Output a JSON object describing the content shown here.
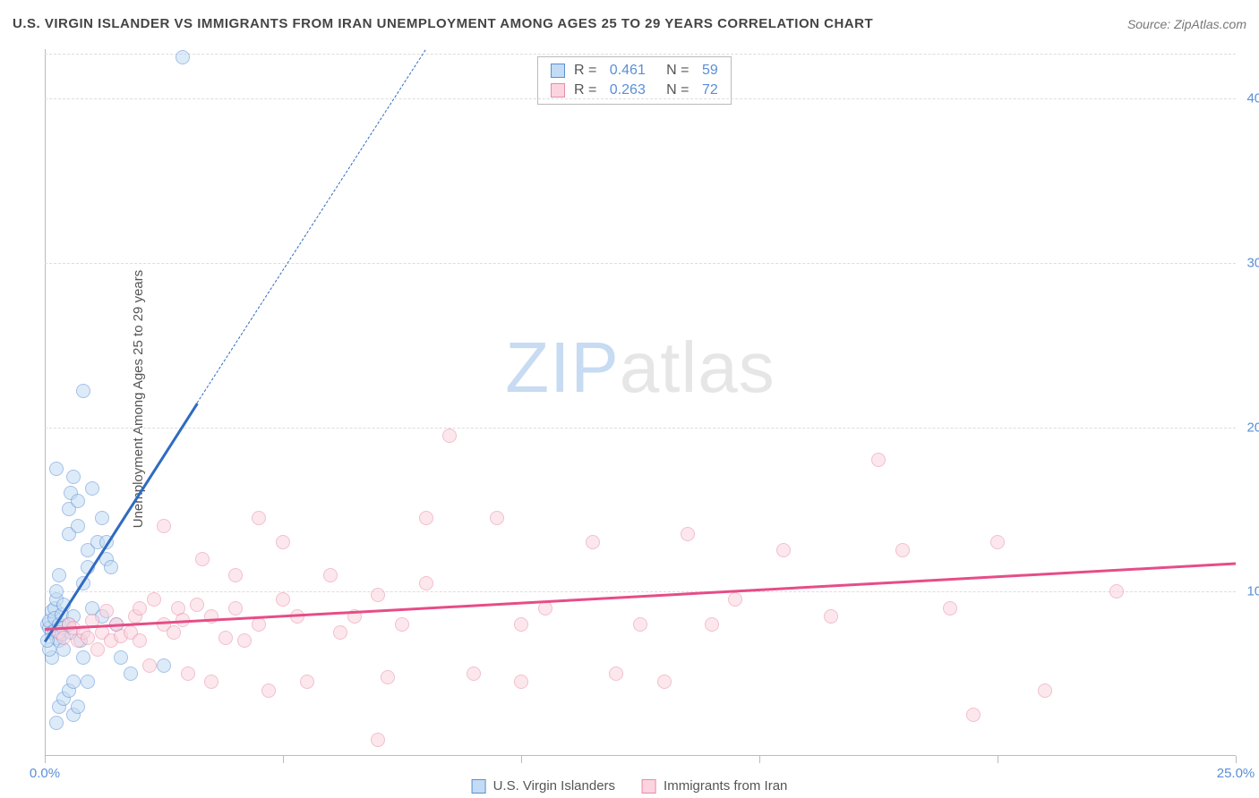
{
  "header": {
    "title": "U.S. VIRGIN ISLANDER VS IMMIGRANTS FROM IRAN UNEMPLOYMENT AMONG AGES 25 TO 29 YEARS CORRELATION CHART",
    "source": "Source: ZipAtlas.com"
  },
  "ylabel": "Unemployment Among Ages 25 to 29 years",
  "watermark": {
    "part1": "ZIP",
    "part2": "atlas",
    "color1": "#c7dbf2",
    "color2": "#e6e6e6"
  },
  "chart": {
    "type": "scatter",
    "xlim": [
      0,
      25
    ],
    "ylim": [
      0,
      43
    ],
    "background_color": "#ffffff",
    "grid_color": "#dddddd",
    "axis_color": "#bbbbbb",
    "x_ticks": [
      0,
      5,
      10,
      15,
      20,
      25
    ],
    "x_tick_labels": {
      "0": "0.0%",
      "25": "25.0%"
    },
    "x_tick_label_color": "#5a8fd6",
    "y_ticks": [
      10,
      20,
      30,
      40
    ],
    "y_tick_labels": {
      "10": "10.0%",
      "20": "20.0%",
      "30": "30.0%",
      "40": "40.0%"
    },
    "y_tick_label_color": "#5a8fd6",
    "series": [
      {
        "name": "U.S. Virgin Islanders",
        "stroke": "#5a8fd6",
        "fill": "#c3dbf4",
        "fill_opacity": 0.55,
        "marker_radius": 8,
        "r_value": "0.461",
        "n_value": "59",
        "trend": {
          "x1": 0,
          "y1": 7.0,
          "x2": 3.2,
          "y2": 21.5,
          "dash_x2": 8.0,
          "dash_y2": 43.0,
          "color": "#2f6bc0",
          "width": 2.5
        },
        "points": [
          [
            0.05,
            8.0
          ],
          [
            0.1,
            7.8
          ],
          [
            0.1,
            8.2
          ],
          [
            0.15,
            7.5
          ],
          [
            0.15,
            8.8
          ],
          [
            0.2,
            9.0
          ],
          [
            0.2,
            7.6
          ],
          [
            0.2,
            8.4
          ],
          [
            0.25,
            7.2
          ],
          [
            0.25,
            9.5
          ],
          [
            0.25,
            10.0
          ],
          [
            0.3,
            8.0
          ],
          [
            0.3,
            7.0
          ],
          [
            0.3,
            11.0
          ],
          [
            0.35,
            7.4
          ],
          [
            0.35,
            8.6
          ],
          [
            0.4,
            7.8
          ],
          [
            0.4,
            9.2
          ],
          [
            0.4,
            6.5
          ],
          [
            0.5,
            8.0
          ],
          [
            0.5,
            13.5
          ],
          [
            0.5,
            15.0
          ],
          [
            0.55,
            7.5
          ],
          [
            0.55,
            16.0
          ],
          [
            0.6,
            17.0
          ],
          [
            0.6,
            8.5
          ],
          [
            0.7,
            15.5
          ],
          [
            0.7,
            14.0
          ],
          [
            0.75,
            7.0
          ],
          [
            0.8,
            10.5
          ],
          [
            0.8,
            6.0
          ],
          [
            0.9,
            11.5
          ],
          [
            0.9,
            12.5
          ],
          [
            1.0,
            16.3
          ],
          [
            1.0,
            9.0
          ],
          [
            1.1,
            13.0
          ],
          [
            1.2,
            14.5
          ],
          [
            1.2,
            8.5
          ],
          [
            1.3,
            13.0
          ],
          [
            1.3,
            12.0
          ],
          [
            1.4,
            11.5
          ],
          [
            1.5,
            8.0
          ],
          [
            1.6,
            6.0
          ],
          [
            1.8,
            5.0
          ],
          [
            2.5,
            5.5
          ],
          [
            0.8,
            22.2
          ],
          [
            0.25,
            2.0
          ],
          [
            0.3,
            3.0
          ],
          [
            0.4,
            3.5
          ],
          [
            0.5,
            4.0
          ],
          [
            0.6,
            4.5
          ],
          [
            0.15,
            6.0
          ],
          [
            0.1,
            6.5
          ],
          [
            0.05,
            7.0
          ],
          [
            0.6,
            2.5
          ],
          [
            0.7,
            3.0
          ],
          [
            0.9,
            4.5
          ],
          [
            0.25,
            17.5
          ],
          [
            2.9,
            42.5
          ]
        ]
      },
      {
        "name": "Immigrants from Iran",
        "stroke": "#e88ba8",
        "fill": "#fbd4df",
        "fill_opacity": 0.55,
        "marker_radius": 8,
        "r_value": "0.263",
        "n_value": "72",
        "trend": {
          "x1": 0,
          "y1": 7.8,
          "x2": 25,
          "y2": 11.8,
          "color": "#e64d87",
          "width": 2.5
        },
        "points": [
          [
            0.3,
            7.5
          ],
          [
            0.4,
            7.2
          ],
          [
            0.5,
            8.0
          ],
          [
            0.6,
            7.8
          ],
          [
            0.7,
            7.0
          ],
          [
            0.8,
            7.5
          ],
          [
            0.9,
            7.2
          ],
          [
            1.0,
            8.2
          ],
          [
            1.1,
            6.5
          ],
          [
            1.2,
            7.5
          ],
          [
            1.3,
            8.8
          ],
          [
            1.4,
            7.0
          ],
          [
            1.5,
            8.0
          ],
          [
            1.6,
            7.3
          ],
          [
            1.8,
            7.5
          ],
          [
            1.9,
            8.5
          ],
          [
            2.0,
            7.0
          ],
          [
            2.0,
            9.0
          ],
          [
            2.2,
            5.5
          ],
          [
            2.3,
            9.5
          ],
          [
            2.5,
            8.0
          ],
          [
            2.5,
            14.0
          ],
          [
            2.7,
            7.5
          ],
          [
            2.8,
            9.0
          ],
          [
            2.9,
            8.3
          ],
          [
            3.0,
            5.0
          ],
          [
            3.2,
            9.2
          ],
          [
            3.3,
            12.0
          ],
          [
            3.5,
            8.5
          ],
          [
            3.5,
            4.5
          ],
          [
            3.8,
            7.2
          ],
          [
            4.0,
            9.0
          ],
          [
            4.0,
            11.0
          ],
          [
            4.2,
            7.0
          ],
          [
            4.5,
            8.0
          ],
          [
            4.5,
            14.5
          ],
          [
            4.7,
            4.0
          ],
          [
            5.0,
            9.5
          ],
          [
            5.0,
            13.0
          ],
          [
            5.3,
            8.5
          ],
          [
            5.5,
            4.5
          ],
          [
            6.0,
            11.0
          ],
          [
            6.2,
            7.5
          ],
          [
            6.5,
            8.5
          ],
          [
            7.0,
            9.8
          ],
          [
            7.0,
            1.0
          ],
          [
            7.2,
            4.8
          ],
          [
            7.5,
            8.0
          ],
          [
            8.0,
            10.5
          ],
          [
            8.0,
            14.5
          ],
          [
            8.5,
            19.5
          ],
          [
            9.0,
            5.0
          ],
          [
            9.5,
            14.5
          ],
          [
            10.0,
            8.0
          ],
          [
            10.0,
            4.5
          ],
          [
            10.5,
            9.0
          ],
          [
            11.5,
            13.0
          ],
          [
            12.0,
            5.0
          ],
          [
            12.5,
            8.0
          ],
          [
            13.0,
            4.5
          ],
          [
            13.5,
            13.5
          ],
          [
            14.0,
            8.0
          ],
          [
            14.5,
            9.5
          ],
          [
            15.5,
            12.5
          ],
          [
            16.5,
            8.5
          ],
          [
            17.5,
            18.0
          ],
          [
            18.0,
            12.5
          ],
          [
            19.0,
            9.0
          ],
          [
            19.5,
            2.5
          ],
          [
            20.0,
            13.0
          ],
          [
            21.0,
            4.0
          ],
          [
            22.5,
            10.0
          ]
        ]
      }
    ],
    "stats_legend": {
      "r_label": "R =",
      "n_label": "N =",
      "text_color": "#555",
      "value_color": "#5a8fd6"
    },
    "bottom_legend_color": "#555"
  }
}
